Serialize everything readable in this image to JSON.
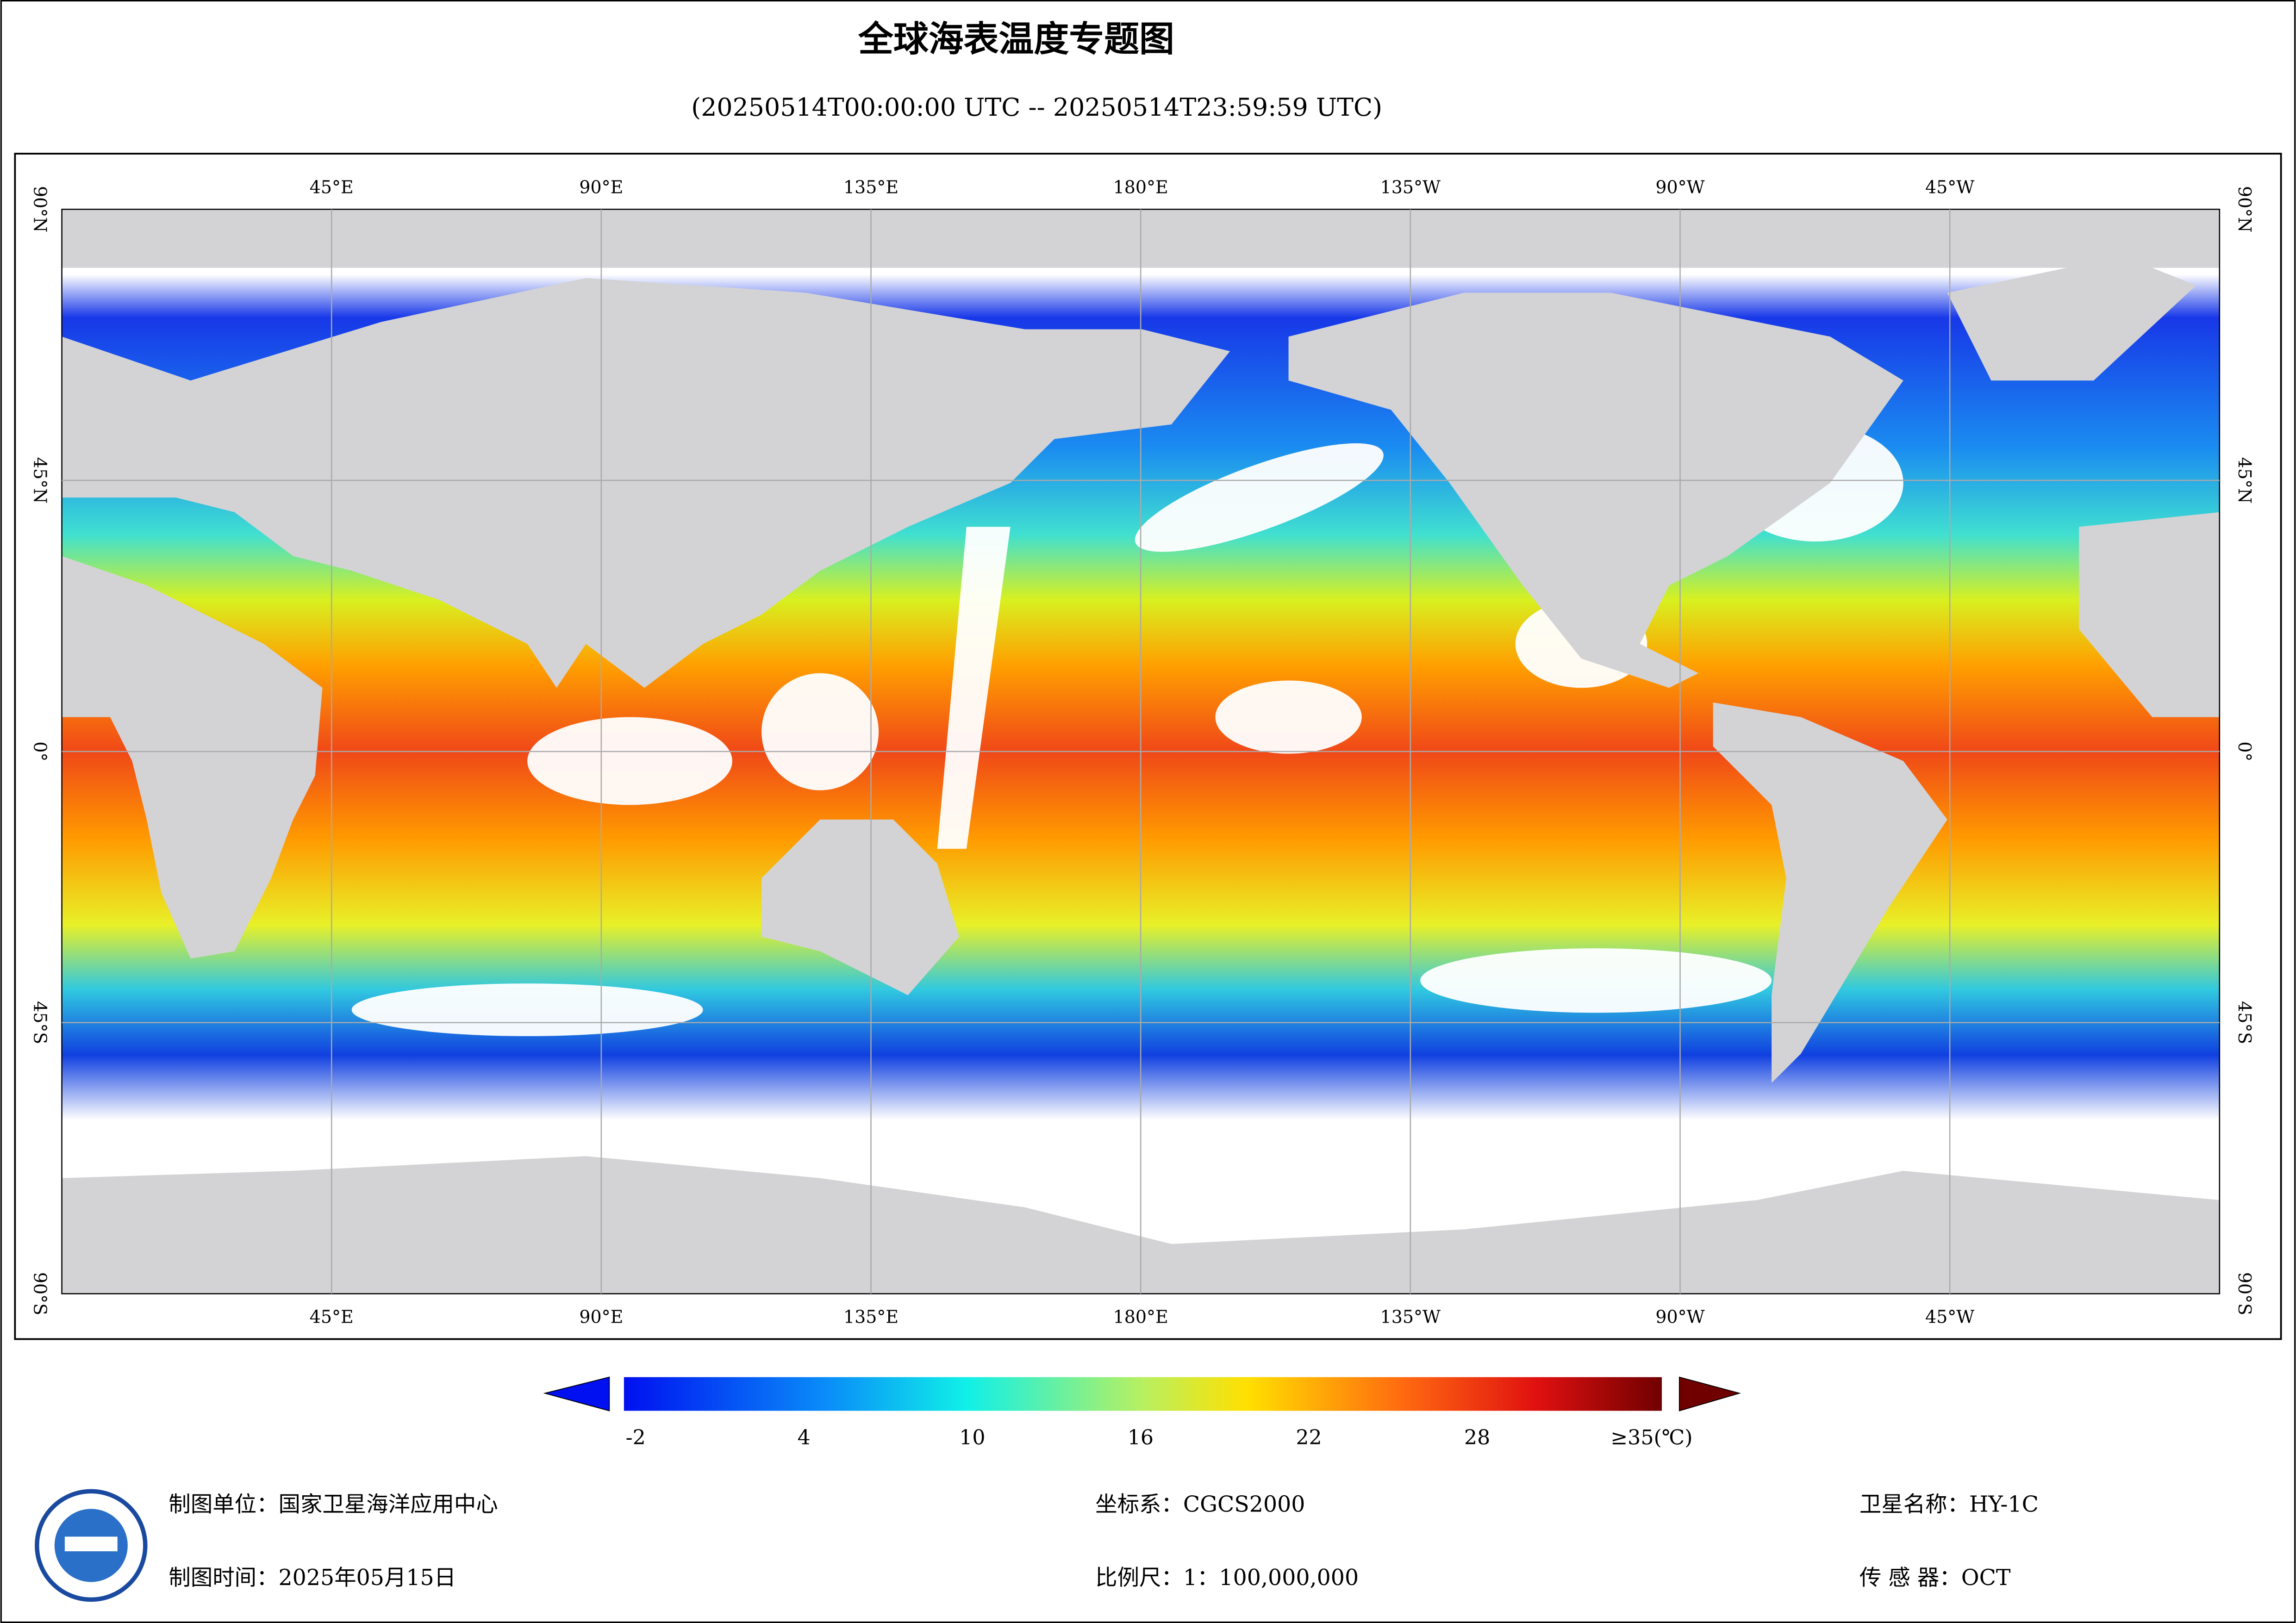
{
  "header": {
    "title": "全球海表温度专题图",
    "subtitle": "(20250514T00:00:00 UTC -- 20250514T23:59:59 UTC)"
  },
  "map": {
    "lon_labels": [
      "45°E",
      "90°E",
      "135°E",
      "180°E",
      "135°W",
      "90°W",
      "45°W"
    ],
    "lat_labels": [
      "90°N",
      "45°N",
      "0°",
      "45°S",
      "90°S"
    ]
  },
  "colorbar": {
    "range": [
      -2,
      35
    ],
    "ticks": [
      -2,
      4,
      10,
      16,
      22,
      28
    ],
    "max_label": "≥35(℃)"
  },
  "footer": {
    "unit": "制图单位：国家卫星海洋应用中心",
    "time": "制图时间：2025年05月15日",
    "crs": "坐标系：CGCS2000",
    "scale": "比例尺：1：100,000,000",
    "satellite": "卫星名称：HY-1C",
    "sensor": "传 感 器：OCT"
  }
}
